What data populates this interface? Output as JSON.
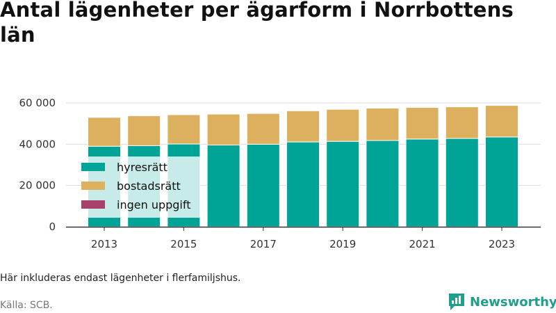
{
  "title": "Antal lägenheter per ägarform i Norrbottens län",
  "note": "Här inkluderas endast lägenheter i flerfamiljshus.",
  "source": "Källa: SCB.",
  "brand": "Newsworthy",
  "colors": {
    "hyresratt": "#00a497",
    "bostadsratt": "#dcb05e",
    "ingen_uppgift": "#a8416a",
    "brand": "#1f9e8c",
    "grid": "#dddddd",
    "axis": "#333333"
  },
  "chart_data": {
    "type": "bar",
    "stacked": true,
    "categories": [
      "2013",
      "2014",
      "2015",
      "2016",
      "2017",
      "2018",
      "2019",
      "2020",
      "2021",
      "2022",
      "2023"
    ],
    "x_tick_labels": [
      "2013",
      "2015",
      "2017",
      "2019",
      "2021",
      "2023"
    ],
    "y_tick_labels": [
      "0",
      "20 000",
      "40 000",
      "60 000"
    ],
    "ylim": [
      0,
      60000
    ],
    "grid": true,
    "legend_position": "inside-left",
    "series": [
      {
        "name": "hyresrätt",
        "color": "#00a497",
        "values": [
          39000,
          39300,
          40100,
          39600,
          40000,
          41100,
          41400,
          41800,
          42500,
          42800,
          43500
        ]
      },
      {
        "name": "bostadsrätt",
        "color": "#dcb05e",
        "values": [
          14000,
          14500,
          14200,
          15000,
          14900,
          15100,
          15500,
          15700,
          15300,
          15300,
          15300
        ]
      },
      {
        "name": "ingen uppgift",
        "color": "#a8416a",
        "values": [
          0,
          0,
          0,
          0,
          0,
          0,
          0,
          0,
          0,
          0,
          0
        ]
      }
    ]
  }
}
